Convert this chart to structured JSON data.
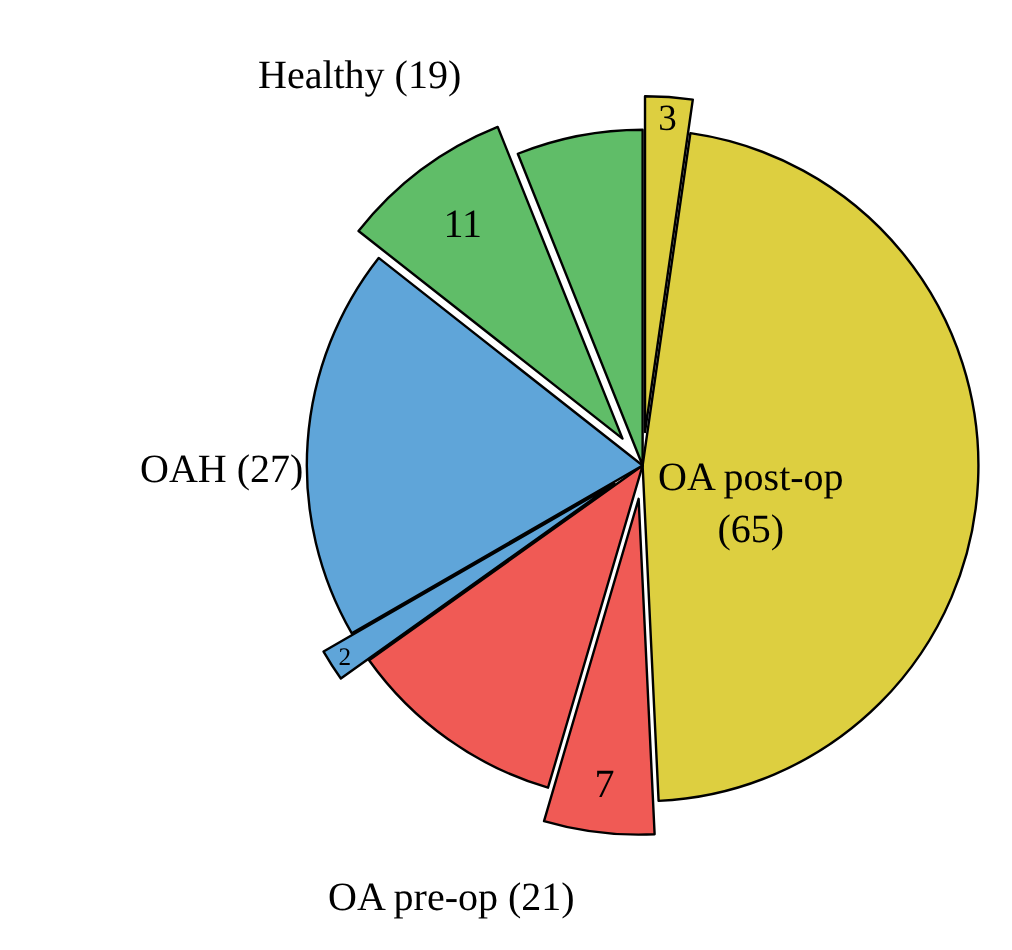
{
  "chart_data": {
    "type": "pie",
    "categories": [
      null,
      null,
      null,
      null,
      null,
      null,
      null,
      null
    ],
    "values": [
      3,
      62,
      7,
      14,
      2,
      25,
      11,
      8
    ],
    "value_labels": [
      "3",
      null,
      "7",
      null,
      "2",
      null,
      "11",
      null
    ],
    "colors": [
      "#ddcf40",
      "#ddcf40",
      "#f05a55",
      "#f05a55",
      "#5fa5d9",
      "#5fa5d9",
      "#60bd68",
      "#60bd68"
    ],
    "annotations": [
      "Healthy (19)",
      "OAH (27)",
      "OA pre-op (21)",
      "OA post-op\n(65)"
    ],
    "legend": false
  }
}
